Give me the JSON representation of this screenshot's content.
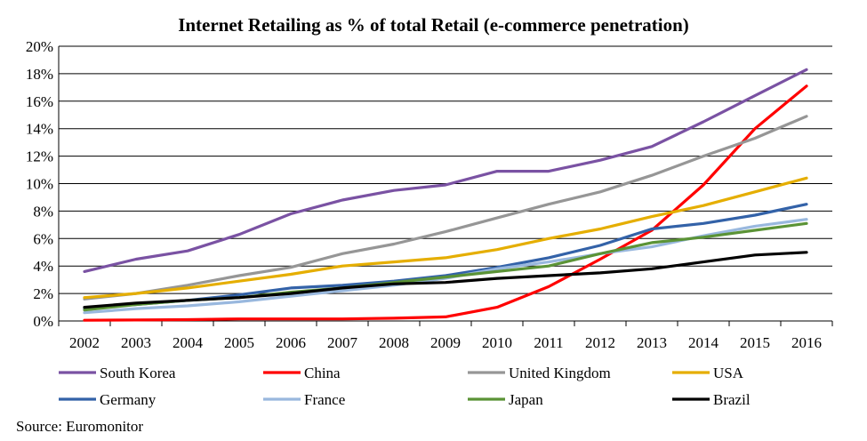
{
  "chart_data": {
    "type": "line",
    "title": "Internet Retailing as % of total Retail (e-commerce penetration)",
    "x": [
      "2002",
      "2003",
      "2004",
      "2005",
      "2006",
      "2007",
      "2008",
      "2009",
      "2010",
      "2011",
      "2012",
      "2013",
      "2014",
      "2015",
      "2016"
    ],
    "y_ticks": [
      "0%",
      "2%",
      "4%",
      "6%",
      "8%",
      "10%",
      "12%",
      "14%",
      "16%",
      "18%",
      "20%"
    ],
    "ylim": [
      0,
      20
    ],
    "grid": true,
    "legend_position": "bottom",
    "series": [
      {
        "name": "South Korea",
        "color": "#7A52A3",
        "values": [
          3.6,
          4.5,
          5.1,
          6.3,
          7.8,
          8.8,
          9.5,
          9.9,
          10.9,
          10.9,
          11.7,
          12.7,
          14.5,
          16.4,
          18.3
        ]
      },
      {
        "name": "China",
        "color": "#FF0000",
        "values": [
          0.05,
          0.07,
          0.1,
          0.15,
          0.15,
          0.15,
          0.2,
          0.3,
          1.0,
          2.5,
          4.5,
          6.6,
          9.9,
          14.0,
          17.1
        ]
      },
      {
        "name": "United Kingdom",
        "color": "#969696",
        "values": [
          1.6,
          2.0,
          2.6,
          3.3,
          3.9,
          4.9,
          5.6,
          6.5,
          7.5,
          8.5,
          9.4,
          10.6,
          12.0,
          13.3,
          14.9
        ]
      },
      {
        "name": "USA",
        "color": "#E5AE00",
        "values": [
          1.7,
          2.0,
          2.4,
          2.9,
          3.4,
          4.0,
          4.3,
          4.6,
          5.2,
          6.0,
          6.7,
          7.6,
          8.4,
          9.4,
          10.4
        ]
      },
      {
        "name": "Germany",
        "color": "#3362A8",
        "values": [
          0.9,
          1.2,
          1.5,
          1.9,
          2.4,
          2.6,
          2.9,
          3.3,
          3.9,
          4.6,
          5.5,
          6.7,
          7.1,
          7.7,
          8.5
        ]
      },
      {
        "name": "France",
        "color": "#99B8DE",
        "values": [
          0.6,
          0.9,
          1.1,
          1.4,
          1.8,
          2.2,
          2.6,
          3.1,
          3.8,
          4.3,
          4.9,
          5.4,
          6.2,
          6.9,
          7.4
        ]
      },
      {
        "name": "Japan",
        "color": "#5B9336",
        "values": [
          0.8,
          1.2,
          1.5,
          1.7,
          2.1,
          2.4,
          2.8,
          3.2,
          3.6,
          4.0,
          4.9,
          5.7,
          6.1,
          6.6,
          7.1
        ]
      },
      {
        "name": "Brazil",
        "color": "#000000",
        "values": [
          1.0,
          1.3,
          1.5,
          1.7,
          2.0,
          2.4,
          2.7,
          2.8,
          3.1,
          3.3,
          3.5,
          3.8,
          4.3,
          4.8,
          5.0
        ]
      }
    ],
    "source": "Source: Euromonitor"
  }
}
